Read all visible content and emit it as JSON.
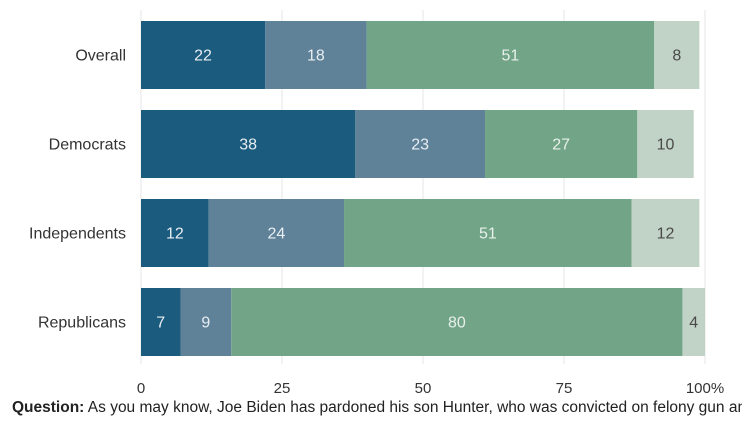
{
  "chart_data": {
    "type": "bar",
    "orientation": "horizontal",
    "stacked": true,
    "categories": [
      "Overall",
      "Democrats",
      "Independents",
      "Republicans"
    ],
    "series": [
      {
        "values": [
          22,
          38,
          12,
          7
        ],
        "color": "#1a5b7e",
        "label_color": "#e8eef2"
      },
      {
        "values": [
          18,
          23,
          24,
          9
        ],
        "color": "#5f8299",
        "label_color": "#e8eef2"
      },
      {
        "values": [
          51,
          27,
          51,
          80
        ],
        "color": "#72a487",
        "label_color": "#e8f1eb"
      },
      {
        "values": [
          8,
          10,
          12,
          4
        ],
        "color": "#c1d2c6",
        "label_color": "#4a4a4a"
      }
    ],
    "xlim": [
      0,
      100
    ],
    "xticks": [
      "0",
      "25",
      "50",
      "75",
      "100%"
    ],
    "xtick_values": [
      0,
      25,
      50,
      75,
      100
    ],
    "grid": true,
    "grid_color": "#e6e6e6",
    "label_color": "#333333"
  },
  "question": {
    "label": "Question:",
    "text": " As you may know, Joe Biden has pardoned his son Hunter, who was convicted on felony gun and tax charges earlier this year. Do you approve, neither approve nor disapprove, or disapprove"
  }
}
